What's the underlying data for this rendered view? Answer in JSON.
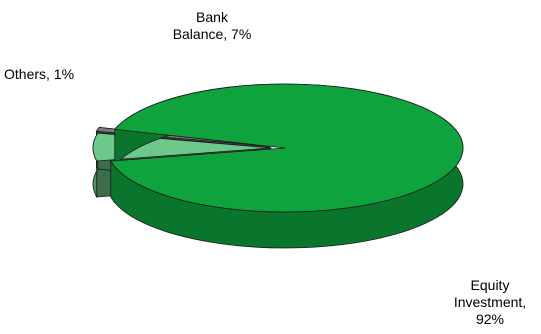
{
  "chart_data": {
    "type": "pie",
    "title": "",
    "style": "3d-exploded",
    "slices": [
      {
        "label": "Equity Investment",
        "value": 92,
        "label_text": [
          "Equity",
          "Investment,",
          "92%"
        ],
        "color": "#0ea33d"
      },
      {
        "label": "Bank Balance",
        "value": 7,
        "label_text": [
          "Bank",
          "Balance, 7%"
        ],
        "color": "#6cc98b"
      },
      {
        "label": "Others",
        "value": 1,
        "label_text": [
          "Others, 1%"
        ],
        "color": "#7a7a7a"
      }
    ]
  }
}
